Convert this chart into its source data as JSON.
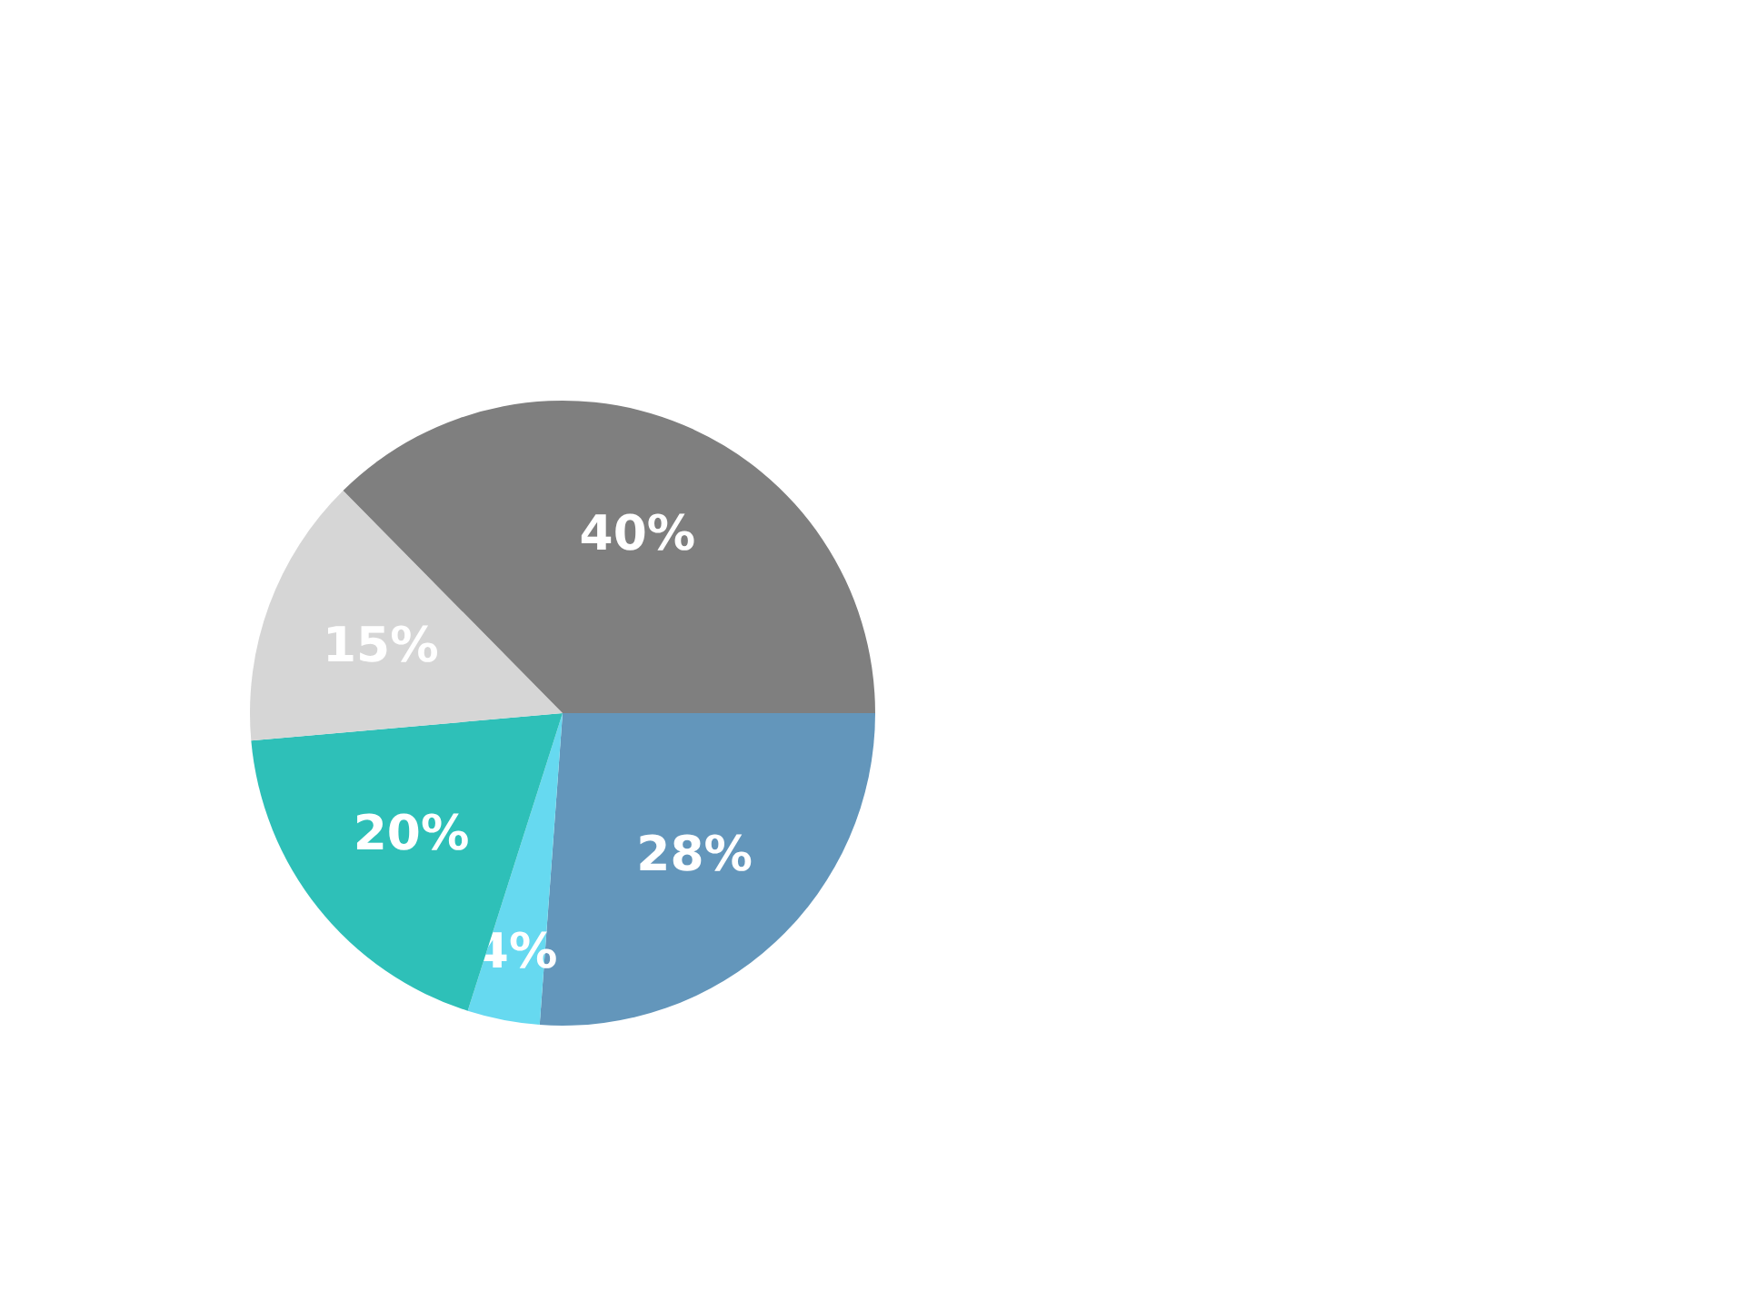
{
  "chart_data": {
    "type": "pie",
    "categories": [
      null,
      null,
      null,
      null,
      null
    ],
    "values": [
      28,
      4,
      20,
      15,
      40
    ],
    "value_labels": [
      "28%",
      "4%",
      "20%",
      "15%",
      "40%"
    ],
    "colors": [
      "#6396bb",
      "#66d9f0",
      "#2ec0b8",
      "#d6d6d6",
      "#7f7f7f"
    ]
  }
}
